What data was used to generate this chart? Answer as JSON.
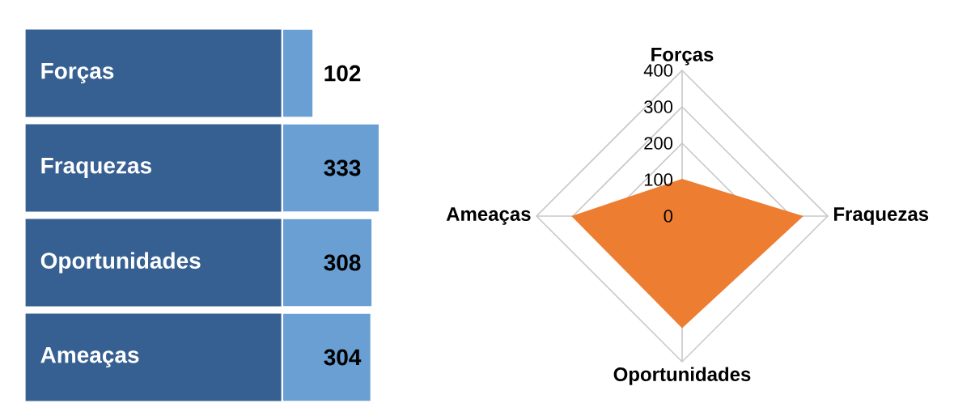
{
  "chart_data": [
    {
      "type": "bar",
      "orientation": "horizontal",
      "categories": [
        "Forças",
        "Fraquezas",
        "Oportunidades",
        "Ameaças"
      ],
      "values": [
        102,
        333,
        308,
        304
      ],
      "color": "#6a9fd4",
      "data_labels": true
    },
    {
      "type": "radar",
      "categories": [
        "Forças",
        "Fraquezas",
        "Oportunidades",
        "Ameaças"
      ],
      "series": [
        {
          "color": "#ed7d31",
          "values": [
            102,
            333,
            308,
            304
          ]
        }
      ],
      "ylim": [
        0,
        400
      ],
      "yticks": [
        0,
        100,
        200,
        300,
        400
      ],
      "grid": true
    }
  ]
}
